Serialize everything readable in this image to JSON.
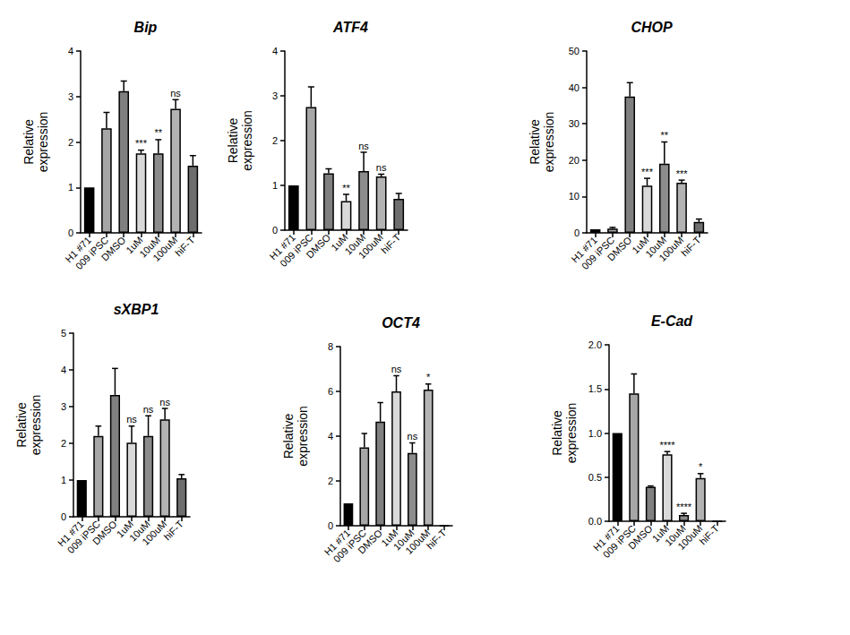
{
  "chart_data": [
    {
      "type": "bar",
      "title": "Bip",
      "ylabel": "Relative expression",
      "categories": [
        "H1 #71",
        "009 iPSC",
        "DMSO",
        "1uM",
        "10uM",
        "100uM",
        "hiF-T"
      ],
      "values": [
        1,
        2.3,
        3.12,
        1.75,
        1.75,
        2.73,
        1.48
      ],
      "errors": [
        0,
        0.35,
        0.22,
        0.07,
        0.3,
        0.2,
        0.22
      ],
      "significance": [
        null,
        null,
        null,
        "***",
        "**",
        "ns",
        null
      ],
      "colors": [
        "#000000",
        "#a6a6a6",
        "#808080",
        "#d9d9d9",
        "#8c8c8c",
        "#b3b3b3",
        "#6e6e6e"
      ],
      "ylim": [
        0,
        4
      ],
      "yticks": [
        0,
        1,
        2,
        3,
        4
      ],
      "grid": false
    },
    {
      "type": "bar",
      "title": "ATF4",
      "ylabel": "Relative expression",
      "categories": [
        "H1 #71",
        "009 iPSC",
        "DMSO",
        "1uM",
        "10uM",
        "100uM",
        "hiF-T"
      ],
      "values": [
        1,
        2.75,
        1.27,
        0.65,
        1.32,
        1.2,
        0.7
      ],
      "errors": [
        0,
        0.45,
        0.1,
        0.15,
        0.42,
        0.05,
        0.12
      ],
      "significance": [
        null,
        null,
        null,
        "**",
        "ns",
        "ns",
        null
      ],
      "colors": [
        "#000000",
        "#a6a6a6",
        "#808080",
        "#d9d9d9",
        "#8c8c8c",
        "#b3b3b3",
        "#6e6e6e"
      ],
      "ylim": [
        0,
        4
      ],
      "yticks": [
        0,
        1,
        2,
        3,
        4
      ],
      "grid": false
    },
    {
      "type": "bar",
      "title": "CHOP",
      "ylabel": "Relative expression",
      "categories": [
        "H1 #71",
        "009 iPSC",
        "DMSO",
        "1uM",
        "10uM",
        "100uM",
        "hiF-T"
      ],
      "values": [
        1,
        1.2,
        37.5,
        13,
        19,
        13.8,
        3
      ],
      "errors": [
        0,
        0.3,
        3.8,
        2,
        6,
        0.7,
        0.8
      ],
      "significance": [
        null,
        null,
        null,
        "***",
        "**",
        "***",
        null
      ],
      "colors": [
        "#000000",
        "#a6a6a6",
        "#808080",
        "#d9d9d9",
        "#8c8c8c",
        "#b3b3b3",
        "#6e6e6e"
      ],
      "ylim": [
        0,
        50
      ],
      "yticks": [
        0,
        10,
        20,
        30,
        40,
        50
      ],
      "grid": false
    },
    {
      "type": "bar",
      "title": "sXBP1",
      "ylabel": "Relative expression",
      "categories": [
        "H1 #71",
        "009 iPSC",
        "DMSO",
        "1uM",
        "10uM",
        "100uM",
        "hiF-T"
      ],
      "values": [
        1,
        2.2,
        3.32,
        2.02,
        2.2,
        2.65,
        1.05
      ],
      "errors": [
        0,
        0.27,
        0.72,
        0.45,
        0.55,
        0.3,
        0.1
      ],
      "significance": [
        null,
        null,
        null,
        "ns",
        "ns",
        "ns",
        null
      ],
      "colors": [
        "#000000",
        "#a6a6a6",
        "#808080",
        "#d9d9d9",
        "#8c8c8c",
        "#b3b3b3",
        "#6e6e6e"
      ],
      "ylim": [
        0,
        5
      ],
      "yticks": [
        0,
        1,
        2,
        3,
        4,
        5
      ],
      "grid": false
    },
    {
      "type": "bar",
      "title": "OCT4",
      "ylabel": "Relative expression",
      "categories": [
        "H1 #71",
        "009 iPSC",
        "DMSO",
        "1uM",
        "10uM",
        "100uM",
        "hiF-T"
      ],
      "values": [
        1,
        3.5,
        4.65,
        6.0,
        3.25,
        6.08,
        0
      ],
      "errors": [
        0,
        0.62,
        0.85,
        0.7,
        0.45,
        0.25,
        0
      ],
      "significance": [
        null,
        null,
        null,
        "ns",
        "ns",
        "*",
        null
      ],
      "colors": [
        "#000000",
        "#a6a6a6",
        "#808080",
        "#d9d9d9",
        "#8c8c8c",
        "#b3b3b3",
        "#6e6e6e"
      ],
      "ylim": [
        0,
        8
      ],
      "yticks": [
        0,
        2,
        4,
        6,
        8
      ],
      "grid": false
    },
    {
      "type": "bar",
      "title": "E-Cad",
      "ylabel": "Relative expression",
      "categories": [
        "H1 #71",
        "009 iPSC",
        "DMSO",
        "1uM",
        "10uM",
        "100uM",
        "hiF-T"
      ],
      "values": [
        1,
        1.45,
        0.39,
        0.76,
        0.07,
        0.49,
        0
      ],
      "errors": [
        0,
        0.22,
        0.01,
        0.03,
        0.02,
        0.05,
        0
      ],
      "significance": [
        null,
        null,
        null,
        "****",
        "****",
        "*",
        null
      ],
      "colors": [
        "#000000",
        "#a6a6a6",
        "#808080",
        "#d9d9d9",
        "#8c8c8c",
        "#b3b3b3",
        "#6e6e6e"
      ],
      "ylim": [
        0,
        2
      ],
      "yticks": [
        {
          "value": 0,
          "label": "0.0"
        },
        {
          "value": 0.5,
          "label": "0.5"
        },
        {
          "value": 1,
          "label": "1.0"
        },
        {
          "value": 1.5,
          "label": "1.5"
        },
        {
          "value": 2,
          "label": "2.0"
        }
      ],
      "grid": false
    }
  ]
}
